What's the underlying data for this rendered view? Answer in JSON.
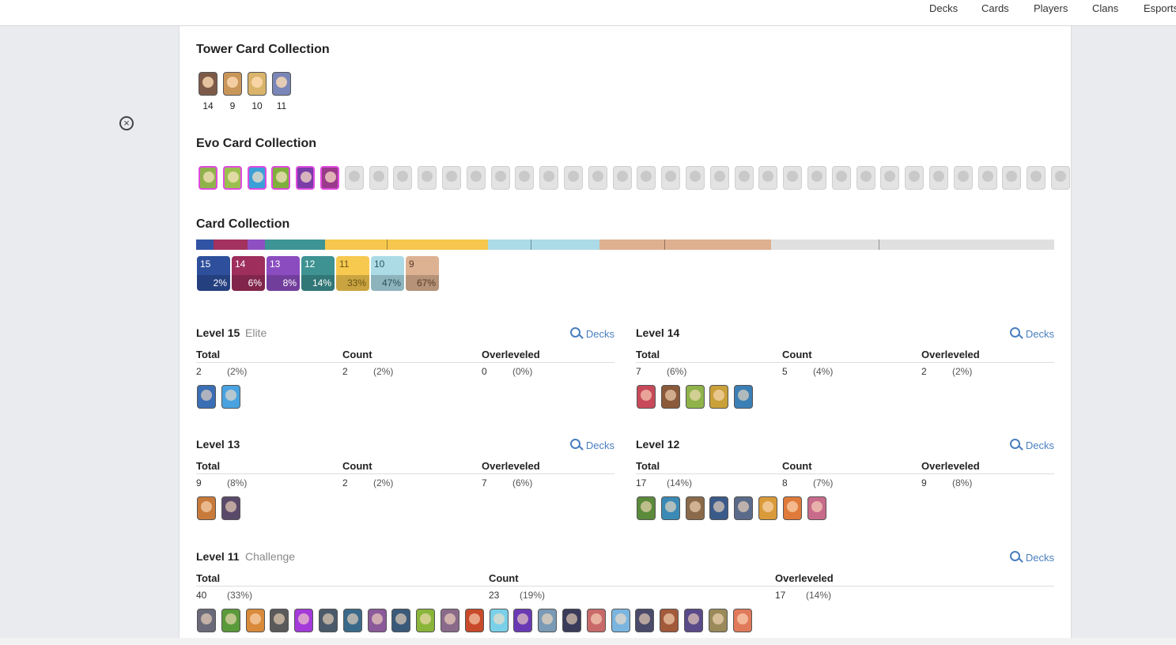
{
  "nav": {
    "items": [
      "Decks",
      "Cards",
      "Players",
      "Clans",
      "Esports"
    ]
  },
  "tower": {
    "title": "Tower Card Collection",
    "levels": [
      "14",
      "9",
      "10",
      "11"
    ],
    "colors": [
      "#7d5a48",
      "#c9965a",
      "#d9b46a",
      "#7a86b8"
    ]
  },
  "evo": {
    "title": "Evo Card Collection",
    "owned_count": 6,
    "total_count": 36,
    "owned_colors": [
      "#8fb34a",
      "#9bbf4f",
      "#3b9fd8",
      "#7fb03c",
      "#7a3da8",
      "#9a3a8a"
    ]
  },
  "collection": {
    "title": "Card Collection",
    "bar": [
      {
        "level": "15",
        "share": 0.02,
        "color": "#3153a3"
      },
      {
        "level": "14",
        "share": 0.04,
        "color": "#a3325f"
      },
      {
        "level": "13",
        "share": 0.02,
        "color": "#8e4fc2"
      },
      {
        "level": "12",
        "share": 0.07,
        "color": "#3e9494"
      },
      {
        "level": "11",
        "share": 0.19,
        "color": "#f6c74c"
      },
      {
        "level": "10",
        "share": 0.13,
        "color": "#abdbe6"
      },
      {
        "level": "9",
        "share": 0.2,
        "color": "#deb090"
      },
      {
        "level": "other",
        "share": 0.33,
        "color": "#e0e0e0"
      }
    ],
    "boxes": [
      {
        "level": "15",
        "pct": "2%",
        "color": "#2e4f9b",
        "text": "#fff"
      },
      {
        "level": "14",
        "pct": "6%",
        "color": "#9e2e5c",
        "text": "#fff"
      },
      {
        "level": "13",
        "pct": "8%",
        "color": "#8b4cbf",
        "text": "#fff"
      },
      {
        "level": "12",
        "pct": "14%",
        "color": "#3e9292",
        "text": "#fff"
      },
      {
        "level": "11",
        "pct": "33%",
        "color": "#f7c94f",
        "text": "#6b5417"
      },
      {
        "level": "10",
        "pct": "47%",
        "color": "#acdbe6",
        "text": "#2b5461"
      },
      {
        "level": "9",
        "pct": "67%",
        "color": "#ddb293",
        "text": "#5b3b26"
      }
    ]
  },
  "sections": {
    "l15": {
      "title": "Level 15",
      "sub": "Elite",
      "decks": "Decks",
      "headers": [
        "Total",
        "Count",
        "Overleveled"
      ],
      "total": "2",
      "total_pct": "(2%)",
      "count": "2",
      "count_pct": "(2%)",
      "over": "0",
      "over_pct": "(0%)",
      "cards": [
        "#3a6fb5",
        "#4aa3e0"
      ]
    },
    "l14": {
      "title": "Level 14",
      "decks": "Decks",
      "headers": [
        "Total",
        "Count",
        "Overleveled"
      ],
      "total": "7",
      "total_pct": "(6%)",
      "count": "5",
      "count_pct": "(4%)",
      "over": "2",
      "over_pct": "(2%)",
      "cards": [
        "#c84a5a",
        "#8a5a3a",
        "#8fb34a",
        "#c9a03a",
        "#3b7fb5"
      ]
    },
    "l13": {
      "title": "Level 13",
      "decks": "Decks",
      "headers": [
        "Total",
        "Count",
        "Overleveled"
      ],
      "total": "9",
      "total_pct": "(8%)",
      "count": "2",
      "count_pct": "(2%)",
      "over": "7",
      "over_pct": "(6%)",
      "cards": [
        "#c87a3a",
        "#5a4a6a"
      ]
    },
    "l12": {
      "title": "Level 12",
      "decks": "Decks",
      "headers": [
        "Total",
        "Count",
        "Overleveled"
      ],
      "total": "17",
      "total_pct": "(14%)",
      "count": "8",
      "count_pct": "(7%)",
      "over": "9",
      "over_pct": "(8%)",
      "cards": [
        "#5a8a3a",
        "#3a8ab5",
        "#8a6a4a",
        "#3a5a8a",
        "#5a6a8a",
        "#d99a3a",
        "#e07a3a",
        "#c86a8a"
      ]
    },
    "l11": {
      "title": "Level 11",
      "sub": "Challenge",
      "decks": "Decks",
      "headers": [
        "Total",
        "Count",
        "Overleveled"
      ],
      "total": "40",
      "total_pct": "(33%)",
      "count": "23",
      "count_pct": "(19%)",
      "over": "17",
      "over_pct": "(14%)",
      "cards": [
        "#6a6a7a",
        "#5a9a3a",
        "#d98a3a",
        "#5a5a5a",
        "#a33ad9",
        "#4a5a6a",
        "#3a6a8a",
        "#8a5a9a",
        "#3a5a7a",
        "#8ab53a",
        "#8a6a8a",
        "#c84a2a",
        "#7ad0e8",
        "#6a3ab5",
        "#7a9ab5",
        "#3a3a5a",
        "#c86a6a",
        "#7ab5e0",
        "#4a4a6a",
        "#a35a3a",
        "#5a4a8a",
        "#9a8a5a",
        "#e07a5a"
      ]
    }
  }
}
